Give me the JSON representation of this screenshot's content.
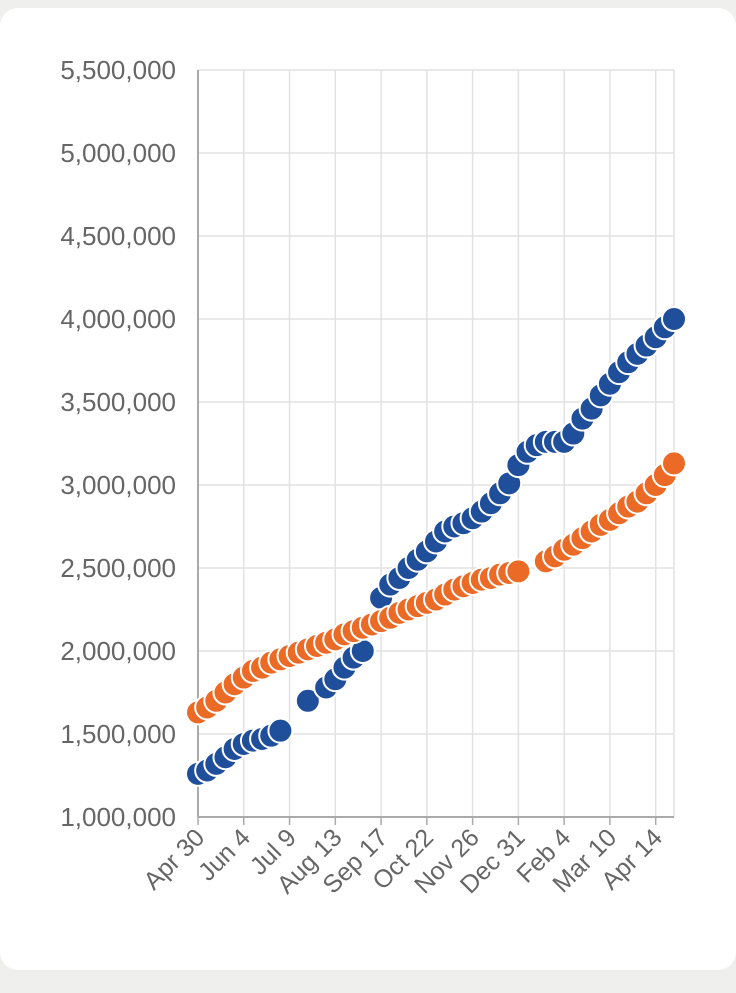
{
  "chart_data": {
    "type": "scatter",
    "title": "",
    "xlabel": "",
    "ylabel": "",
    "ylim": [
      1000000,
      5500000
    ],
    "y_ticks": [
      "5,500,000",
      "5,000,000",
      "4,500,000",
      "4,000,000",
      "3,500,000",
      "3,000,000",
      "2,500,000",
      "2,000,000",
      "1,500,000",
      "1,000,000"
    ],
    "x_ticks": [
      "Apr 30",
      "Jun 4",
      "Jul 9",
      "Aug 13",
      "Sep 17",
      "Oct 22",
      "Nov 26",
      "Dec 31",
      "Feb 4",
      "Mar 10",
      "Apr 14"
    ],
    "x_unit": "week index (0 = Apr 30)",
    "grid": true,
    "colors": {
      "series_blue": "#1f4e9a",
      "series_orange": "#ea6a26",
      "grid": "#e2e2e2",
      "axis": "#aaaaaa"
    },
    "series": [
      {
        "color": "#1f4e9a",
        "points": [
          [
            0,
            1260000
          ],
          [
            1,
            1280000
          ],
          [
            2,
            1320000
          ],
          [
            3,
            1360000
          ],
          [
            4,
            1410000
          ],
          [
            5,
            1440000
          ],
          [
            6,
            1460000
          ],
          [
            7,
            1470000
          ],
          [
            8,
            1490000
          ],
          [
            9,
            1520000
          ],
          [
            12,
            1700000
          ],
          [
            14,
            1780000
          ],
          [
            15,
            1830000
          ],
          [
            16,
            1900000
          ],
          [
            17,
            1960000
          ],
          [
            18,
            2000000
          ],
          [
            19,
            2170000
          ],
          [
            20,
            2320000
          ],
          [
            21,
            2400000
          ],
          [
            22,
            2440000
          ],
          [
            23,
            2500000
          ],
          [
            24,
            2550000
          ],
          [
            25,
            2600000
          ],
          [
            26,
            2660000
          ],
          [
            27,
            2720000
          ],
          [
            28,
            2750000
          ],
          [
            29,
            2770000
          ],
          [
            30,
            2800000
          ],
          [
            31,
            2840000
          ],
          [
            32,
            2890000
          ],
          [
            33,
            2950000
          ],
          [
            34,
            3010000
          ],
          [
            35,
            3120000
          ],
          [
            36,
            3200000
          ],
          [
            37,
            3240000
          ],
          [
            38,
            3260000
          ],
          [
            39,
            3260000
          ],
          [
            40,
            3260000
          ],
          [
            41,
            3310000
          ],
          [
            42,
            3400000
          ],
          [
            43,
            3460000
          ],
          [
            44,
            3540000
          ],
          [
            45,
            3610000
          ],
          [
            46,
            3680000
          ],
          [
            47,
            3740000
          ],
          [
            48,
            3790000
          ],
          [
            49,
            3840000
          ],
          [
            50,
            3890000
          ],
          [
            51,
            3950000
          ],
          [
            52,
            4000000
          ]
        ]
      },
      {
        "color": "#ea6a26",
        "points": [
          [
            0,
            1630000
          ],
          [
            1,
            1660000
          ],
          [
            2,
            1700000
          ],
          [
            3,
            1750000
          ],
          [
            4,
            1800000
          ],
          [
            5,
            1840000
          ],
          [
            6,
            1880000
          ],
          [
            7,
            1900000
          ],
          [
            8,
            1930000
          ],
          [
            9,
            1950000
          ],
          [
            10,
            1970000
          ],
          [
            11,
            1990000
          ],
          [
            12,
            2010000
          ],
          [
            13,
            2030000
          ],
          [
            14,
            2050000
          ],
          [
            15,
            2070000
          ],
          [
            16,
            2100000
          ],
          [
            17,
            2120000
          ],
          [
            18,
            2140000
          ],
          [
            19,
            2160000
          ],
          [
            20,
            2180000
          ],
          [
            21,
            2200000
          ],
          [
            22,
            2230000
          ],
          [
            23,
            2250000
          ],
          [
            24,
            2270000
          ],
          [
            25,
            2290000
          ],
          [
            26,
            2310000
          ],
          [
            27,
            2340000
          ],
          [
            28,
            2370000
          ],
          [
            29,
            2390000
          ],
          [
            30,
            2410000
          ],
          [
            31,
            2430000
          ],
          [
            32,
            2440000
          ],
          [
            33,
            2460000
          ],
          [
            34,
            2470000
          ],
          [
            35,
            2480000
          ],
          [
            38,
            2540000
          ],
          [
            39,
            2570000
          ],
          [
            40,
            2610000
          ],
          [
            41,
            2640000
          ],
          [
            42,
            2680000
          ],
          [
            43,
            2720000
          ],
          [
            44,
            2760000
          ],
          [
            45,
            2790000
          ],
          [
            46,
            2830000
          ],
          [
            47,
            2870000
          ],
          [
            48,
            2900000
          ],
          [
            49,
            2950000
          ],
          [
            50,
            3000000
          ],
          [
            51,
            3060000
          ],
          [
            52,
            3130000
          ]
        ]
      }
    ]
  }
}
